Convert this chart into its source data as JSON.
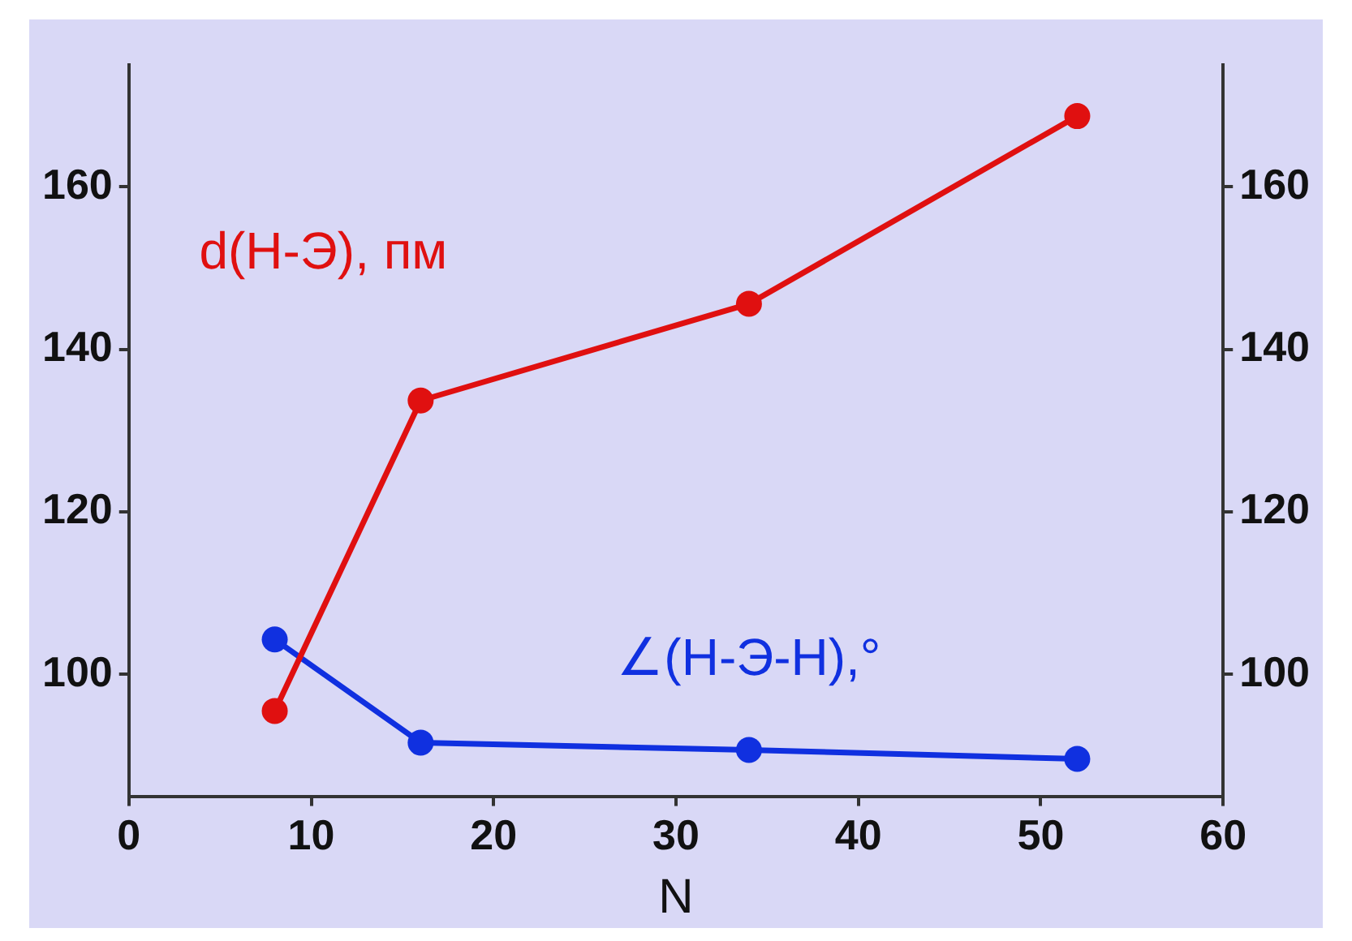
{
  "chart_data": {
    "type": "line",
    "xlabel": "N",
    "x": [
      8,
      16,
      34,
      52
    ],
    "series": [
      {
        "name": "d(H-Э), пм",
        "color": "#e01010",
        "values": [
          95.5,
          133.7,
          145.6,
          168.7
        ]
      },
      {
        "name": "∠(H-Э-H),°",
        "color": "#1030e0",
        "values": [
          104.3,
          91.6,
          90.7,
          89.6
        ]
      }
    ],
    "xlim": [
      0,
      60
    ],
    "xticks": [
      0,
      10,
      20,
      30,
      40,
      50,
      60
    ],
    "ylim": [
      85,
      175
    ],
    "yticks": [
      100,
      120,
      140,
      160
    ],
    "y2lim": [
      85,
      175
    ],
    "y2ticks": [
      100,
      120,
      140,
      160
    ],
    "marker": "circle",
    "line_style": "solid",
    "grid": false,
    "legend": false
  }
}
